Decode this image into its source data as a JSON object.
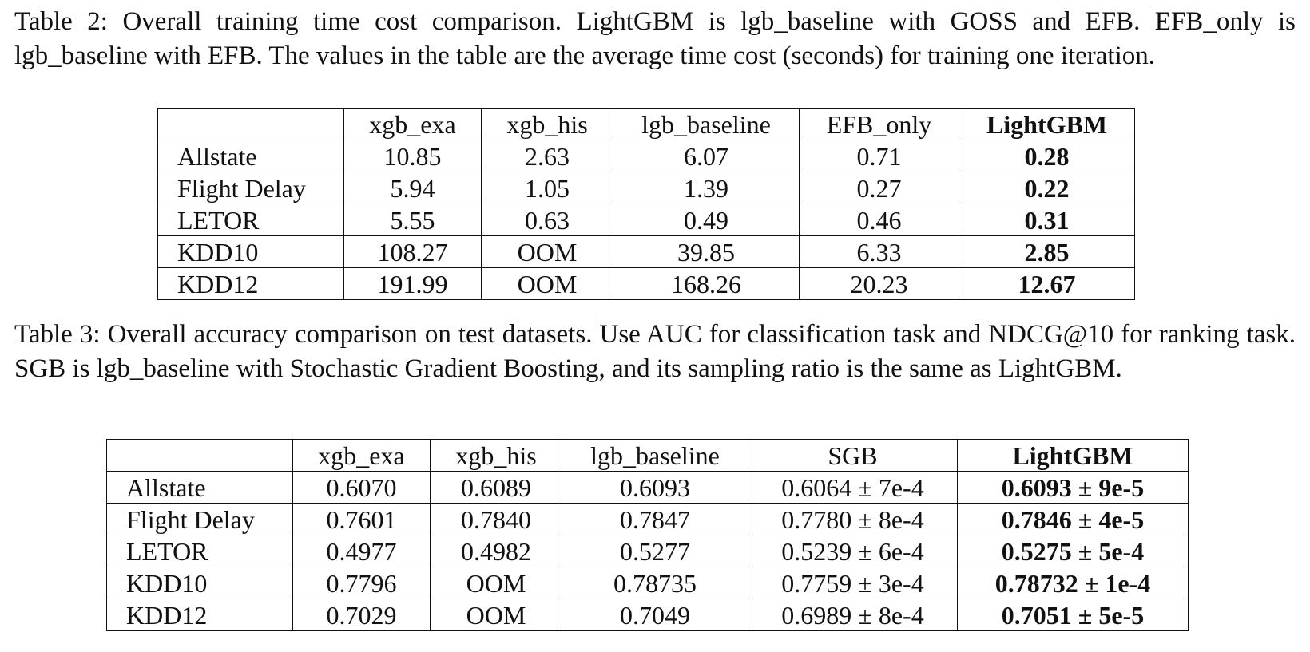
{
  "table2": {
    "caption": "Table 2: Overall training time cost comparison. LightGBM is lgb_baseline with GOSS and EFB. EFB_only is lgb_baseline with EFB. The values in the table are the average time cost (seconds) for training one iteration.",
    "headers": [
      "",
      "xgb_exa",
      "xgb_his",
      "lgb_baseline",
      "EFB_only",
      "LightGBM"
    ],
    "rows": [
      [
        "Allstate",
        "10.85",
        "2.63",
        "6.07",
        "0.71",
        "0.28"
      ],
      [
        "Flight Delay",
        "5.94",
        "1.05",
        "1.39",
        "0.27",
        "0.22"
      ],
      [
        "LETOR",
        "5.55",
        "0.63",
        "0.49",
        "0.46",
        "0.31"
      ],
      [
        "KDD10",
        "108.27",
        "OOM",
        "39.85",
        "6.33",
        "2.85"
      ],
      [
        "KDD12",
        "191.99",
        "OOM",
        "168.26",
        "20.23",
        "12.67"
      ]
    ]
  },
  "table3": {
    "caption": "Table 3: Overall accuracy comparison on test datasets. Use AUC for classification task and NDCG@10 for ranking task. SGB is lgb_baseline with Stochastic Gradient Boosting, and its sampling ratio is the same as LightGBM.",
    "headers": [
      "",
      "xgb_exa",
      "xgb_his",
      "lgb_baseline",
      "SGB",
      "LightGBM"
    ],
    "rows": [
      [
        "Allstate",
        "0.6070",
        "0.6089",
        "0.6093",
        "0.6064 ± 7e-4",
        "0.6093 ± 9e-5"
      ],
      [
        "Flight Delay",
        "0.7601",
        "0.7840",
        "0.7847",
        "0.7780 ± 8e-4",
        "0.7846 ± 4e-5"
      ],
      [
        "LETOR",
        "0.4977",
        "0.4982",
        "0.5277",
        "0.5239 ± 6e-4",
        "0.5275 ± 5e-4"
      ],
      [
        "KDD10",
        "0.7796",
        "OOM",
        "0.78735",
        "0.7759 ± 3e-4",
        "0.78732 ± 1e-4"
      ],
      [
        "KDD12",
        "0.7029",
        "OOM",
        "0.7049",
        "0.6989 ± 8e-4",
        "0.7051 ± 5e-5"
      ]
    ]
  }
}
